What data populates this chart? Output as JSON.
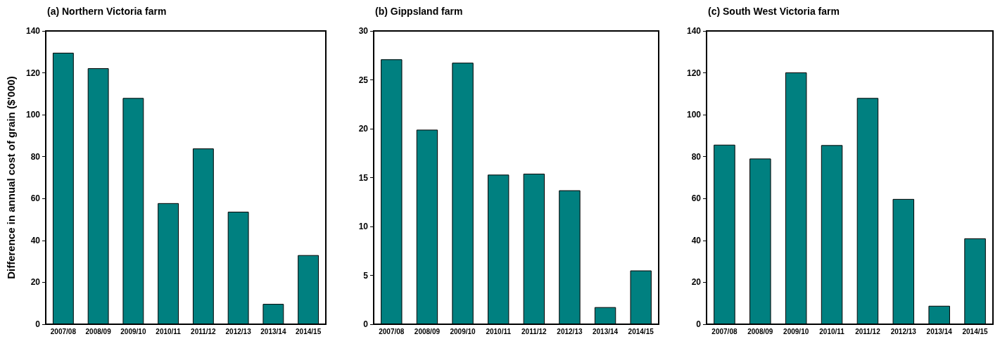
{
  "chart_data": [
    {
      "type": "bar",
      "title": "(a) Northern Victoria farm",
      "ylabel": "Difference in annual cost of grain ($'000)",
      "categories": [
        "2007/08",
        "2008/09",
        "2009/10",
        "2010/11",
        "2011/12",
        "2012/13",
        "2013/14",
        "2014/15"
      ],
      "series": [
        {
          "color": "#008080",
          "values": [
            129.6,
            122.2,
            108,
            57.8,
            83.9,
            53.7,
            9.7,
            33
          ]
        }
      ],
      "ylim": [
        0,
        140
      ],
      "yticks": [
        0,
        20,
        40,
        60,
        80,
        100,
        120,
        140
      ]
    },
    {
      "type": "bar",
      "title": "(b) Gippsland farm",
      "categories": [
        "2007/08",
        "2008/09",
        "2009/10",
        "2010/11",
        "2011/12",
        "2012/13",
        "2013/14",
        "2014/15"
      ],
      "series": [
        {
          "color": "#008080",
          "values": [
            27.1,
            19.9,
            26.75,
            15.3,
            15.4,
            13.7,
            1.75,
            5.5
          ]
        }
      ],
      "ylim": [
        0,
        30
      ],
      "yticks": [
        0,
        5,
        10,
        15,
        20,
        25,
        30
      ]
    },
    {
      "type": "bar",
      "title": "(c) South West Victoria farm",
      "categories": [
        "2007/08",
        "2008/09",
        "2009/10",
        "2010/11",
        "2011/12",
        "2012/13",
        "2013/14",
        "2014/15"
      ],
      "series": [
        {
          "color": "#008080",
          "values": [
            85.7,
            79.1,
            120.2,
            85.5,
            108,
            59.8,
            8.8,
            41
          ]
        }
      ],
      "ylim": [
        0,
        140
      ],
      "yticks": [
        0,
        20,
        40,
        60,
        80,
        100,
        120,
        140
      ]
    }
  ]
}
